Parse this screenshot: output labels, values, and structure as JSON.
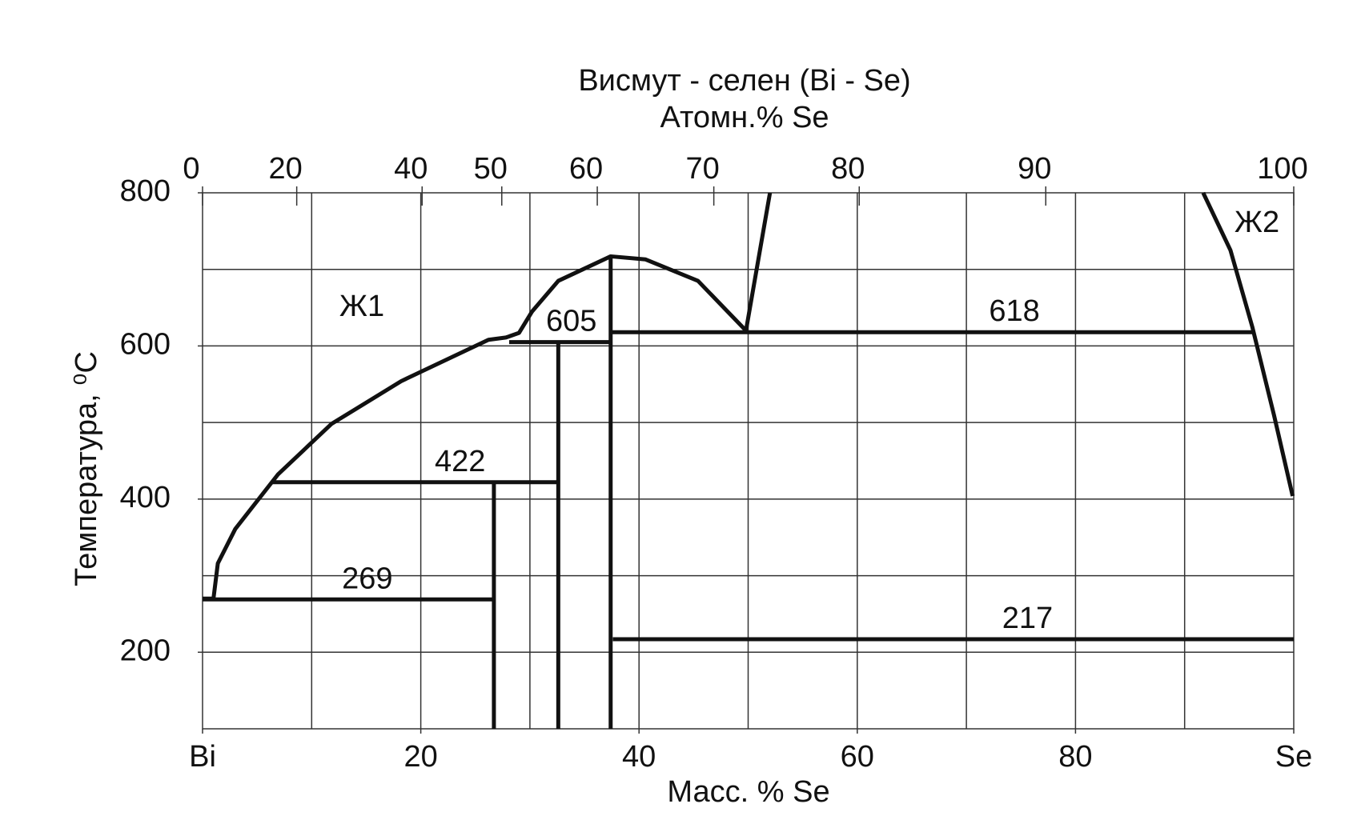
{
  "chart_data": {
    "type": "line",
    "title": "Висмут - селен (Bi - Se)",
    "x2label": "Атомн.% Se",
    "xlabel": "Масс. % Se",
    "ylabel": "Температура, ⁰C",
    "xlim": [
      0,
      100
    ],
    "xticks": [
      {
        "value": 0,
        "label": "Bi"
      },
      20,
      40,
      60,
      80,
      {
        "value": 100,
        "label": "Se"
      }
    ],
    "xgrid": [
      10,
      20,
      30,
      40,
      50,
      60,
      70,
      80,
      90
    ],
    "x2lim": [
      0,
      100
    ],
    "x2ticks": [
      0,
      20,
      40,
      50,
      60,
      70,
      80,
      90,
      100
    ],
    "x2scale": "atomic-percent",
    "ylim": [
      100,
      800
    ],
    "yticks": [
      200,
      400,
      600,
      800
    ],
    "ygrid": [
      200,
      300,
      400,
      500,
      600,
      700
    ],
    "grid": true,
    "color": "#111111",
    "annotations": [
      "Ж1",
      "Ж2"
    ],
    "series": [
      {
        "x": [
          0,
          1,
          1.4,
          3,
          6.9,
          11.8,
          18.2,
          26.2,
          27.8,
          29,
          30.2,
          32.6,
          37.4,
          40.6,
          45.4,
          49.8
        ],
        "values": [
          270,
          270,
          316,
          361,
          432,
          498,
          554,
          608,
          611,
          617,
          645,
          685,
          717,
          713,
          685,
          620
        ]
      },
      {
        "x": [
          49.8,
          52.0
        ],
        "values": [
          620,
          800
        ]
      },
      {
        "x": [
          91.7,
          94.2,
          96.2,
          98.2,
          99.9
        ],
        "values": [
          800,
          725,
          625,
          509,
          404
        ]
      },
      {
        "x": [
          0,
          26.7
        ],
        "values": [
          269,
          269
        ]
      },
      {
        "x": [
          6.4,
          32.6
        ],
        "values": [
          422,
          422
        ]
      },
      {
        "x": [
          28.1,
          37.4
        ],
        "values": [
          605,
          605
        ]
      },
      {
        "x": [
          37.4,
          96.2
        ],
        "values": [
          618,
          618
        ]
      },
      {
        "x": [
          37.6,
          100
        ],
        "values": [
          217,
          217
        ]
      },
      {
        "x": [
          26.7,
          26.7
        ],
        "values": [
          100,
          422
        ]
      },
      {
        "x": [
          32.6,
          32.6
        ],
        "values": [
          100,
          605
        ]
      },
      {
        "x": [
          37.4,
          37.4
        ],
        "values": [
          100,
          717
        ]
      }
    ]
  }
}
